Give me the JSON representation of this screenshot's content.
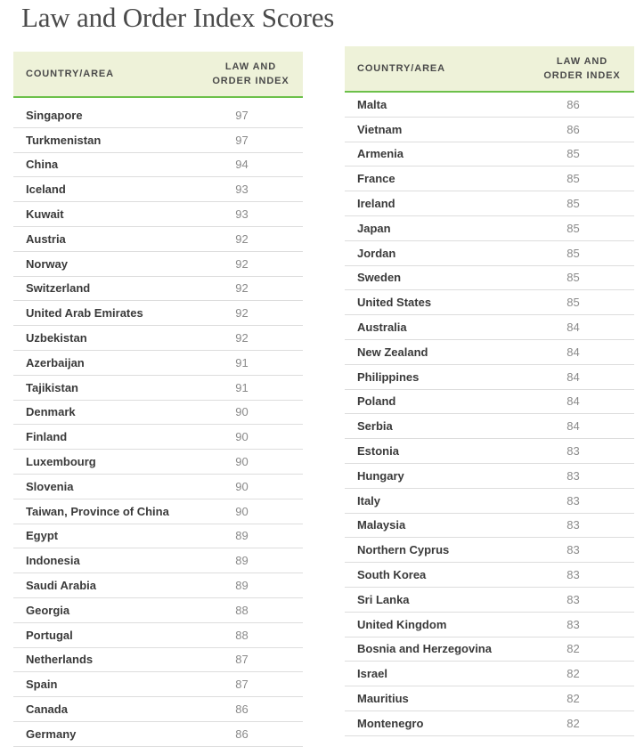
{
  "title": "Law and Order Index Scores",
  "header_colors": {
    "background": "#eef2d9",
    "accent_line": "#6cc04a"
  },
  "columns": {
    "country": "COUNTRY/AREA",
    "index_line1": "LAW AND",
    "index_line2": "ORDER INDEX"
  },
  "left_table": [
    {
      "country": "Singapore",
      "score": "97"
    },
    {
      "country": "Turkmenistan",
      "score": "97"
    },
    {
      "country": "China",
      "score": "94"
    },
    {
      "country": "Iceland",
      "score": "93"
    },
    {
      "country": "Kuwait",
      "score": "93"
    },
    {
      "country": "Austria",
      "score": "92"
    },
    {
      "country": "Norway",
      "score": "92"
    },
    {
      "country": "Switzerland",
      "score": "92"
    },
    {
      "country": "United Arab Emirates",
      "score": "92"
    },
    {
      "country": "Uzbekistan",
      "score": "92"
    },
    {
      "country": "Azerbaijan",
      "score": "91"
    },
    {
      "country": "Tajikistan",
      "score": "91"
    },
    {
      "country": "Denmark",
      "score": "90"
    },
    {
      "country": "Finland",
      "score": "90"
    },
    {
      "country": "Luxembourg",
      "score": "90"
    },
    {
      "country": "Slovenia",
      "score": "90"
    },
    {
      "country": "Taiwan, Province of China",
      "score": "90"
    },
    {
      "country": "Egypt",
      "score": "89"
    },
    {
      "country": "Indonesia",
      "score": "89"
    },
    {
      "country": "Saudi Arabia",
      "score": "89"
    },
    {
      "country": "Georgia",
      "score": "88"
    },
    {
      "country": "Portugal",
      "score": "88"
    },
    {
      "country": "Netherlands",
      "score": "87"
    },
    {
      "country": "Spain",
      "score": "87"
    },
    {
      "country": "Canada",
      "score": "86"
    },
    {
      "country": "Germany",
      "score": "86"
    }
  ],
  "right_table": [
    {
      "country": "Malta",
      "score": "86"
    },
    {
      "country": "Vietnam",
      "score": "86"
    },
    {
      "country": "Armenia",
      "score": "85"
    },
    {
      "country": "France",
      "score": "85"
    },
    {
      "country": "Ireland",
      "score": "85"
    },
    {
      "country": "Japan",
      "score": "85"
    },
    {
      "country": "Jordan",
      "score": "85"
    },
    {
      "country": "Sweden",
      "score": "85"
    },
    {
      "country": "United States",
      "score": "85"
    },
    {
      "country": "Australia",
      "score": "84"
    },
    {
      "country": "New Zealand",
      "score": "84"
    },
    {
      "country": "Philippines",
      "score": "84"
    },
    {
      "country": "Poland",
      "score": "84"
    },
    {
      "country": "Serbia",
      "score": "84"
    },
    {
      "country": "Estonia",
      "score": "83"
    },
    {
      "country": "Hungary",
      "score": "83"
    },
    {
      "country": "Italy",
      "score": "83"
    },
    {
      "country": "Malaysia",
      "score": "83"
    },
    {
      "country": "Northern Cyprus",
      "score": "83"
    },
    {
      "country": "South Korea",
      "score": "83"
    },
    {
      "country": "Sri Lanka",
      "score": "83"
    },
    {
      "country": "United Kingdom",
      "score": "83"
    },
    {
      "country": "Bosnia and Herzegovina",
      "score": "82"
    },
    {
      "country": "Israel",
      "score": "82"
    },
    {
      "country": "Mauritius",
      "score": "82"
    },
    {
      "country": "Montenegro",
      "score": "82"
    }
  ]
}
